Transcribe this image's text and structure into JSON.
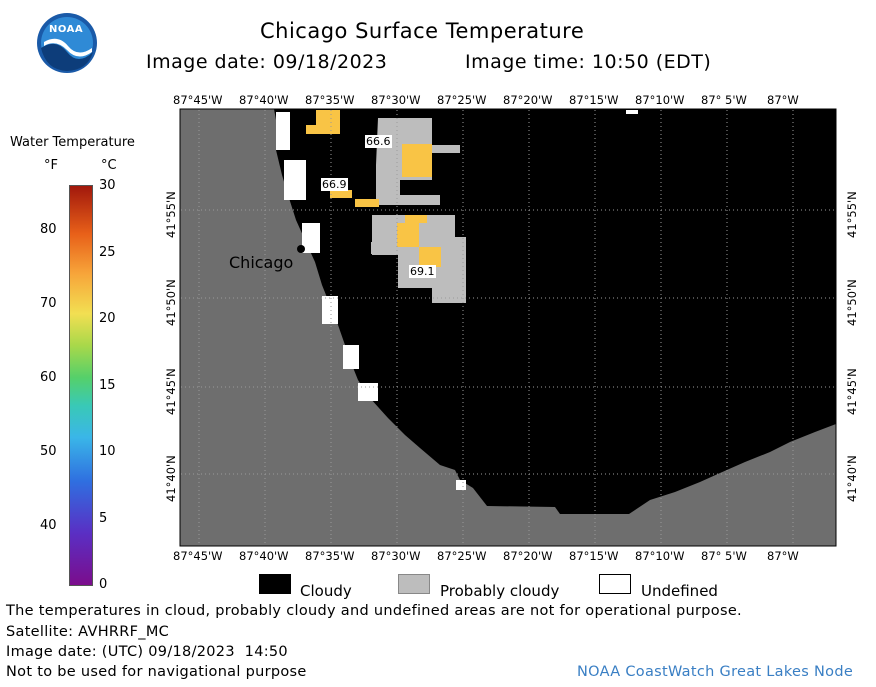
{
  "header": {
    "title": "Chicago Surface Temperature",
    "image_date": "Image date: 09/18/2023",
    "image_time": "Image time: 10:50 (EDT)"
  },
  "logo": {
    "text": "NOAA"
  },
  "colorbar": {
    "title": "Water Temperature",
    "unit_f": "°F",
    "unit_c": "°C",
    "f_ticks": [
      "80",
      "70",
      "60",
      "50",
      "40"
    ],
    "c_ticks": [
      "30",
      "25",
      "20",
      "15",
      "10",
      "5",
      "0"
    ]
  },
  "map": {
    "lon_labels": [
      "87°45'W",
      "87°40'W",
      "87°35'W",
      "87°30'W",
      "87°25'W",
      "87°20'W",
      "87°15'W",
      "87°10'W",
      "87° 5'W",
      "87°W"
    ],
    "lat_labels": [
      "41°55'N",
      "41°50'N",
      "41°45'N",
      "41°40'N"
    ],
    "city": "Chicago",
    "temp_labels": [
      "66.6",
      "66.9",
      "69.1"
    ],
    "colors": {
      "land": "#6e6e6e",
      "cloudy": "#000000",
      "probably_cloudy": "#bdbdbd",
      "undefined": "#ffffff",
      "warm_water": "#f9c445"
    }
  },
  "legend": {
    "cloudy": "Cloudy",
    "probably_cloudy": "Probably cloudy",
    "undefined": "Undefined"
  },
  "footer": {
    "note": "The temperatures in cloud, probably cloudy and undefined areas are not for operational purpose.",
    "satellite": "Satellite: AVHRRF_MC",
    "utc_date": "Image date: (UTC) 09/18/2023  14:50",
    "nav_warning": "Not to be used for navigational purpose",
    "credit": "NOAA CoastWatch Great Lakes Node"
  }
}
